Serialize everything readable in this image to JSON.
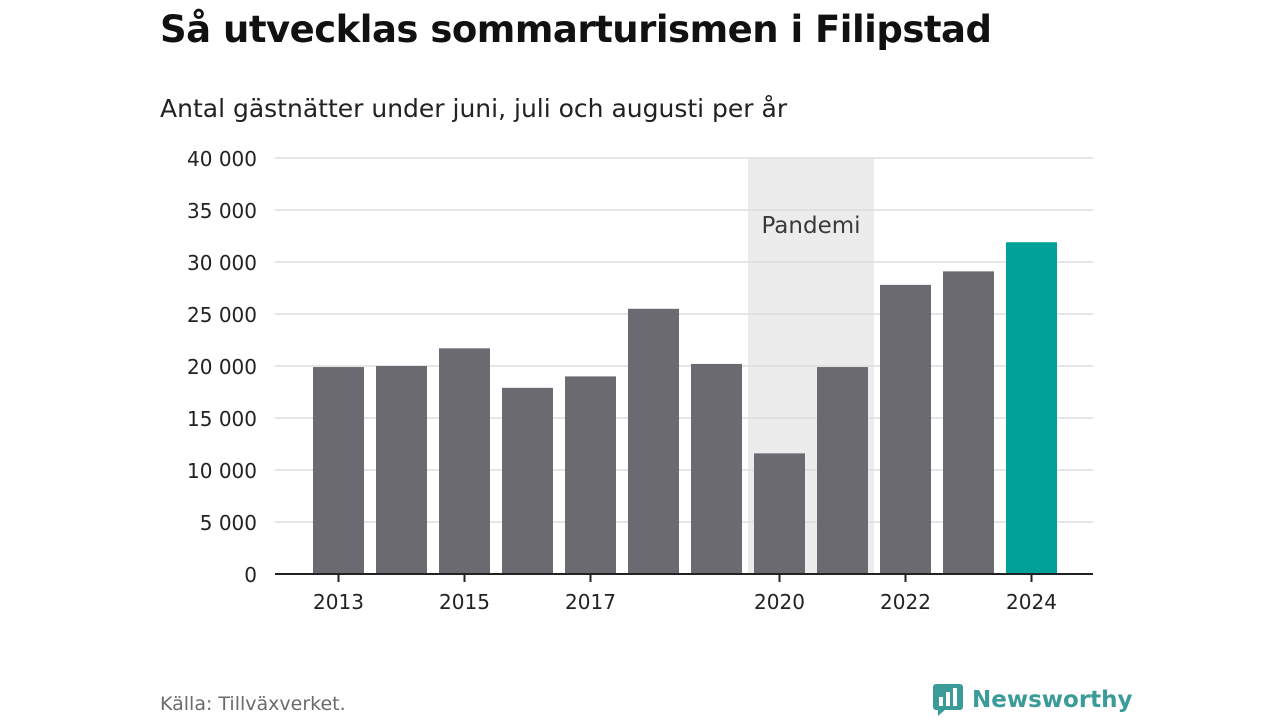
{
  "title": "Så utvecklas sommarturismen i Filipstad",
  "subtitle": "Antal gästnätter under juni, juli och augusti per år",
  "source": "Källa: Tillväxverket.",
  "brand": {
    "name": "Newsworthy",
    "icon": "newsworthy-logo-icon",
    "color": "#3a9b98"
  },
  "colors": {
    "bar": "#6b6a70",
    "highlight": "#00a199",
    "shade": "#ececec",
    "grid": "#dddddd",
    "axis": "#222222"
  },
  "chart_data": {
    "type": "bar",
    "categories": [
      "2013",
      "2014",
      "2015",
      "2016",
      "2017",
      "2018",
      "2019",
      "2020",
      "2021",
      "2022",
      "2023",
      "2024"
    ],
    "values": [
      19900,
      20000,
      21700,
      17900,
      19000,
      25500,
      20200,
      11600,
      19900,
      27800,
      29100,
      31900
    ],
    "highlight": [
      "2024"
    ],
    "tick_labels": [
      "2013",
      "2015",
      "2017",
      "2020",
      "2022",
      "2024"
    ],
    "y_tick_labels": [
      "0",
      "5 000",
      "10 000",
      "15 000",
      "20 000",
      "25 000",
      "30 000",
      "35 000",
      "40 000"
    ],
    "y_ticks": [
      0,
      5000,
      10000,
      15000,
      20000,
      25000,
      30000,
      35000,
      40000
    ],
    "ylim": [
      0,
      40000
    ],
    "grid": true,
    "shaded_region": {
      "label": "Pandemi",
      "from": "2020",
      "to": "2021"
    }
  }
}
